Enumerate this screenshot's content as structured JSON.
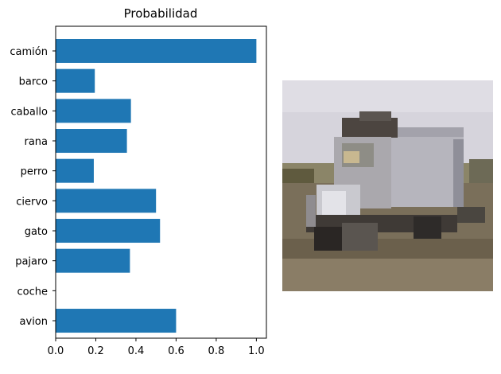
{
  "chart_data": {
    "type": "bar",
    "orientation": "horizontal",
    "title": "Probabilidad",
    "xlabel": "",
    "ylabel": "",
    "categories": [
      "camión",
      "barco",
      "caballo",
      "rana",
      "perro",
      "ciervo",
      "gato",
      "pajaro",
      "coche",
      "avion"
    ],
    "values": [
      1.0,
      0.195,
      0.375,
      0.355,
      0.19,
      0.5,
      0.52,
      0.37,
      0.0,
      0.6
    ],
    "xlim": [
      0,
      1.05
    ],
    "xticks": [
      "0.0",
      "0.2",
      "0.4",
      "0.6",
      "0.8",
      "1.0"
    ],
    "grid": false,
    "bar_color": "#1f77b4"
  },
  "image_panel": {
    "icon": "truck-photo-icon",
    "description_colors": {
      "sky": "#d6d4dc",
      "ground": "#6e6350",
      "truck": "#a9a9b2"
    }
  }
}
